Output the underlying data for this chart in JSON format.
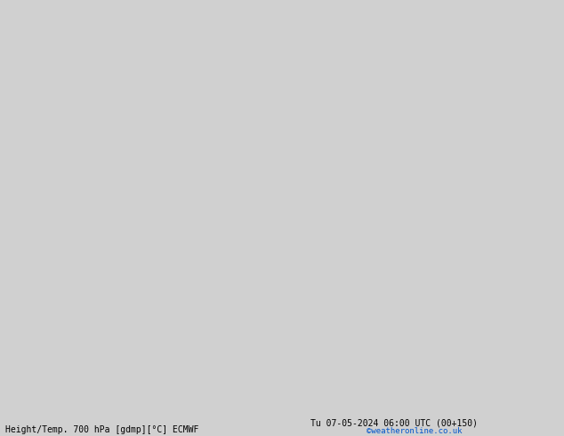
{
  "title_left": "Height/Temp. 700 hPa [gdmp][°C] ECMWF",
  "title_right": "Tu 07-05-2024 06:00 UTC (00+150)",
  "credit": "©weatheronline.co.uk",
  "background_color": "#d0d0d0",
  "ocean_color": "#d0d0d0",
  "land_color": "#c8e8a0",
  "border_color": "#aaaaaa",
  "fig_width": 6.34,
  "fig_height": 4.9,
  "dpi": 100,
  "credit_color": "#0055cc",
  "extent": [
    -30,
    80,
    -45,
    45
  ],
  "black_contour_lw": 1.6,
  "pink_contour_lw": 1.5,
  "red_contour_lw": 1.4
}
